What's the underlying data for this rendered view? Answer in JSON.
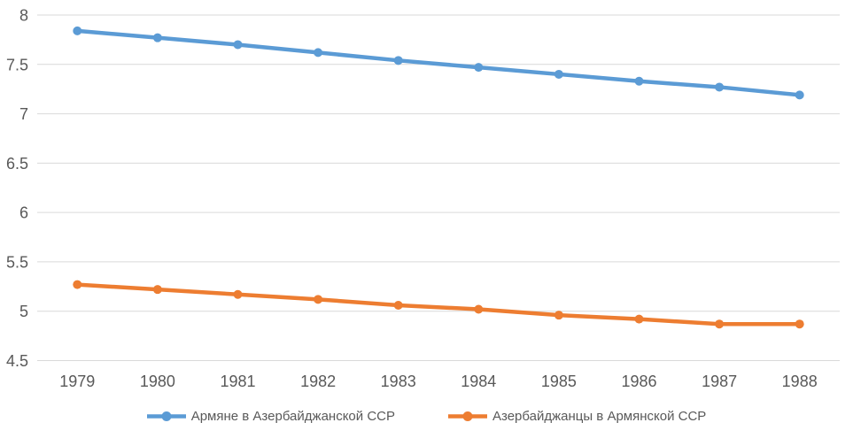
{
  "chart_data": {
    "type": "line",
    "title": "",
    "xlabel": "",
    "ylabel": "",
    "categories": [
      "1979",
      "1980",
      "1981",
      "1982",
      "1983",
      "1984",
      "1985",
      "1986",
      "1987",
      "1988"
    ],
    "series": [
      {
        "name": "Армяне в Азербайджанской ССР",
        "color": "#5B9BD5",
        "marker": "circle",
        "values": [
          7.84,
          7.77,
          7.7,
          7.62,
          7.54,
          7.47,
          7.4,
          7.33,
          7.27,
          7.19
        ]
      },
      {
        "name": "Азербайджанцы в Армянской ССР",
        "color": "#ED7D31",
        "marker": "circle",
        "values": [
          5.27,
          5.22,
          5.17,
          5.12,
          5.06,
          5.02,
          4.96,
          4.92,
          4.87,
          4.87
        ]
      }
    ],
    "ylim": [
      4.5,
      8
    ],
    "ytick_step": 0.5,
    "yticks": [
      "8",
      "7.5",
      "7",
      "6.5",
      "6",
      "5.5",
      "5",
      "4.5"
    ],
    "grid": true,
    "legend_position": "bottom",
    "background_color": "#FFFFFF",
    "gridline_color": "#D9D9D9",
    "axis_text_color": "#595959"
  }
}
